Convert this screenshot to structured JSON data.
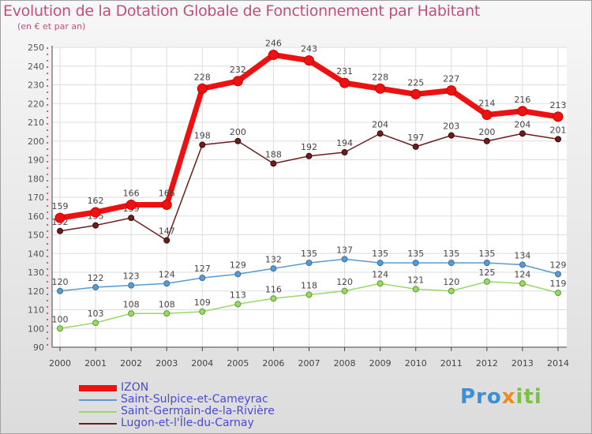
{
  "title": "Evolution de la Dotation Globale de Fonctionnement par Habitant",
  "subtitle": "(en € et par an)",
  "logo": {
    "text": "Proxiti",
    "parts": [
      "Pro",
      "x",
      "iti"
    ]
  },
  "chart_data": {
    "type": "line",
    "title": "Evolution de la Dotation Globale de Fonctionnement par Habitant",
    "ylabel": "(en € et par an)",
    "xlabel": "",
    "ylim": [
      90,
      250
    ],
    "y_ticks": [
      90,
      100,
      110,
      120,
      130,
      140,
      150,
      160,
      170,
      180,
      190,
      200,
      210,
      220,
      230,
      240,
      250
    ],
    "x": [
      "2000",
      "2001",
      "2002",
      "2003",
      "2004",
      "2005",
      "2006",
      "2007",
      "2008",
      "2009",
      "2010",
      "2011",
      "2012",
      "2013",
      "2014"
    ],
    "grid": true,
    "legend": "bottom-left",
    "series": [
      {
        "name": "IZON",
        "color": "#ee1111",
        "values": [
          159,
          162,
          166,
          166,
          228,
          232,
          246,
          243,
          231,
          228,
          225,
          227,
          214,
          216,
          213
        ]
      },
      {
        "name": "Saint-Sulpice-et-Cameyrac",
        "color": "#5a9ad0",
        "values": [
          120,
          122,
          123,
          124,
          127,
          129,
          132,
          135,
          137,
          135,
          135,
          135,
          135,
          134,
          129
        ]
      },
      {
        "name": "Saint-Germain-de-la-Rivière",
        "color": "#9ad86a",
        "values": [
          100,
          103,
          108,
          108,
          109,
          113,
          116,
          118,
          120,
          124,
          121,
          120,
          125,
          124,
          119
        ]
      },
      {
        "name": "Lugon-et-l'Île-du-Carnay",
        "color": "#6b1e1e",
        "values": [
          152,
          155,
          159,
          147,
          198,
          200,
          188,
          192,
          194,
          204,
          197,
          203,
          200,
          204,
          201
        ]
      }
    ]
  }
}
